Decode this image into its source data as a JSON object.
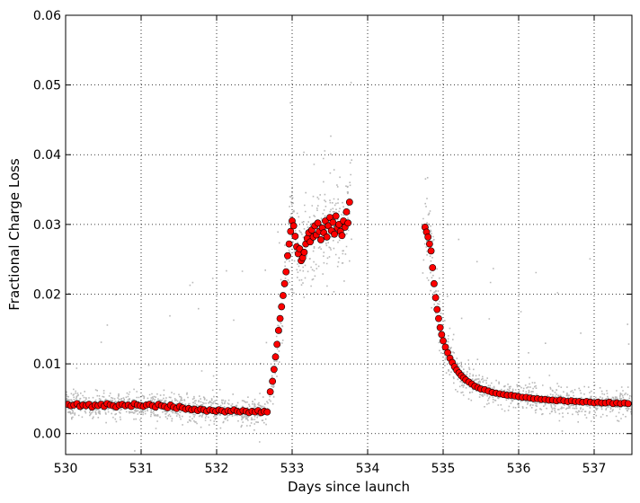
{
  "chart_data": {
    "type": "scatter",
    "title": "",
    "xlabel": "Days since launch",
    "ylabel": "Fractional Charge Loss",
    "xlim": [
      530.0,
      537.5
    ],
    "ylim": [
      -0.003,
      0.06
    ],
    "xticks": [
      530,
      531,
      532,
      533,
      534,
      535,
      536,
      537
    ],
    "xtick_labels": [
      "530",
      "531",
      "532",
      "533",
      "534",
      "535",
      "536",
      "537"
    ],
    "yticks": [
      0.0,
      0.01,
      0.02,
      0.03,
      0.04,
      0.05,
      0.06
    ],
    "ytick_labels": [
      "0.00",
      "0.01",
      "0.02",
      "0.03",
      "0.04",
      "0.05",
      "0.06"
    ],
    "grid": true,
    "grid_style": "dotted",
    "colors": {
      "raw": "#000000",
      "binned": "#ff0000",
      "binned_edge": "#000000"
    },
    "gap": [
      533.78,
      534.72
    ],
    "series": [
      {
        "style": "small translucent black dots",
        "description_values": {
          "quiet_level_before": 0.0038,
          "quiet_spread_before": 0.0035,
          "plateau_level": 0.031,
          "plateau_spread": 0.011,
          "quiet_level_after": 0.0045
        }
      },
      {
        "style": "red circles with black edge",
        "x": [
          530.03,
          530.07,
          530.11,
          530.15,
          530.19,
          530.23,
          530.27,
          530.31,
          530.35,
          530.39,
          530.43,
          530.47,
          530.51,
          530.55,
          530.59,
          530.63,
          530.67,
          530.71,
          530.75,
          530.79,
          530.83,
          530.87,
          530.91,
          530.95,
          530.99,
          531.03,
          531.07,
          531.11,
          531.15,
          531.19,
          531.23,
          531.27,
          531.31,
          531.35,
          531.39,
          531.43,
          531.47,
          531.51,
          531.55,
          531.59,
          531.63,
          531.67,
          531.71,
          531.75,
          531.79,
          531.83,
          531.87,
          531.91,
          531.95,
          531.99,
          532.03,
          532.07,
          532.11,
          532.15,
          532.19,
          532.23,
          532.27,
          532.31,
          532.35,
          532.39,
          532.43,
          532.47,
          532.51,
          532.55,
          532.59,
          532.63,
          532.67,
          532.71,
          532.74,
          532.76,
          532.78,
          532.8,
          532.82,
          532.84,
          532.86,
          532.88,
          532.9,
          532.92,
          532.94,
          532.96,
          532.98,
          533.0,
          533.02,
          533.04,
          533.06,
          533.08,
          533.1,
          533.12,
          533.14,
          533.16,
          533.18,
          533.2,
          533.22,
          533.24,
          533.26,
          533.28,
          533.3,
          533.32,
          533.34,
          533.36,
          533.38,
          533.4,
          533.42,
          533.44,
          533.46,
          533.48,
          533.5,
          533.52,
          533.54,
          533.56,
          533.58,
          533.6,
          533.62,
          533.64,
          533.66,
          533.68,
          533.7,
          533.72,
          533.74,
          533.76,
          534.76,
          534.78,
          534.8,
          534.82,
          534.84,
          534.86,
          534.88,
          534.9,
          534.92,
          534.94,
          534.96,
          534.98,
          535.0,
          535.03,
          535.06,
          535.09,
          535.12,
          535.15,
          535.18,
          535.21,
          535.24,
          535.27,
          535.3,
          535.34,
          535.38,
          535.42,
          535.46,
          535.5,
          535.55,
          535.6,
          535.65,
          535.7,
          535.75,
          535.8,
          535.85,
          535.9,
          535.95,
          536.0,
          536.05,
          536.1,
          536.15,
          536.2,
          536.25,
          536.3,
          536.35,
          536.4,
          536.45,
          536.5,
          536.55,
          536.6,
          536.65,
          536.7,
          536.75,
          536.8,
          536.85,
          536.9,
          536.95,
          537.0,
          537.05,
          537.1,
          537.15,
          537.2,
          537.25,
          537.3,
          537.35,
          537.4,
          537.45
        ],
        "y": [
          0.0042,
          0.004,
          0.0041,
          0.0043,
          0.0039,
          0.0041,
          0.004,
          0.0042,
          0.0038,
          0.0041,
          0.004,
          0.0042,
          0.0039,
          0.0043,
          0.0041,
          0.004,
          0.0038,
          0.0041,
          0.0042,
          0.004,
          0.0041,
          0.0039,
          0.0043,
          0.0041,
          0.004,
          0.0039,
          0.0041,
          0.0042,
          0.004,
          0.0038,
          0.0042,
          0.004,
          0.0039,
          0.0037,
          0.0041,
          0.0038,
          0.0036,
          0.0039,
          0.0037,
          0.0035,
          0.0036,
          0.0034,
          0.0035,
          0.0033,
          0.0035,
          0.0034,
          0.0032,
          0.0034,
          0.0033,
          0.0032,
          0.0034,
          0.0033,
          0.0031,
          0.0033,
          0.0032,
          0.0034,
          0.0032,
          0.0031,
          0.0033,
          0.0032,
          0.003,
          0.0032,
          0.0031,
          0.0033,
          0.003,
          0.0032,
          0.0031,
          0.006,
          0.0075,
          0.0092,
          0.011,
          0.0128,
          0.0148,
          0.0165,
          0.0182,
          0.0198,
          0.0215,
          0.0232,
          0.0255,
          0.0272,
          0.029,
          0.0305,
          0.0298,
          0.0283,
          0.0268,
          0.0258,
          0.0265,
          0.0248,
          0.0252,
          0.026,
          0.0272,
          0.028,
          0.0288,
          0.0275,
          0.0292,
          0.0282,
          0.0298,
          0.0285,
          0.0302,
          0.029,
          0.0278,
          0.0295,
          0.0288,
          0.0305,
          0.0282,
          0.0298,
          0.031,
          0.0291,
          0.0303,
          0.0286,
          0.0312,
          0.0295,
          0.03,
          0.029,
          0.0284,
          0.0305,
          0.0296,
          0.0318,
          0.0302,
          0.0332,
          0.0296,
          0.0289,
          0.0282,
          0.0272,
          0.0262,
          0.0238,
          0.0215,
          0.0195,
          0.0178,
          0.0165,
          0.0152,
          0.0142,
          0.0133,
          0.0124,
          0.0116,
          0.0108,
          0.0102,
          0.0096,
          0.0091,
          0.0087,
          0.0083,
          0.008,
          0.0077,
          0.0074,
          0.0071,
          0.0068,
          0.0066,
          0.0064,
          0.0063,
          0.0061,
          0.0059,
          0.0058,
          0.0057,
          0.0056,
          0.0055,
          0.0055,
          0.0054,
          0.0053,
          0.0052,
          0.0052,
          0.0051,
          0.005,
          0.005,
          0.0049,
          0.0049,
          0.0048,
          0.0048,
          0.0047,
          0.0048,
          0.0047,
          0.0046,
          0.0047,
          0.0046,
          0.0046,
          0.0045,
          0.0046,
          0.0045,
          0.0044,
          0.0045,
          0.0044,
          0.0044,
          0.0045,
          0.0043,
          0.0044,
          0.0043,
          0.0044,
          0.0043
        ]
      }
    ]
  }
}
